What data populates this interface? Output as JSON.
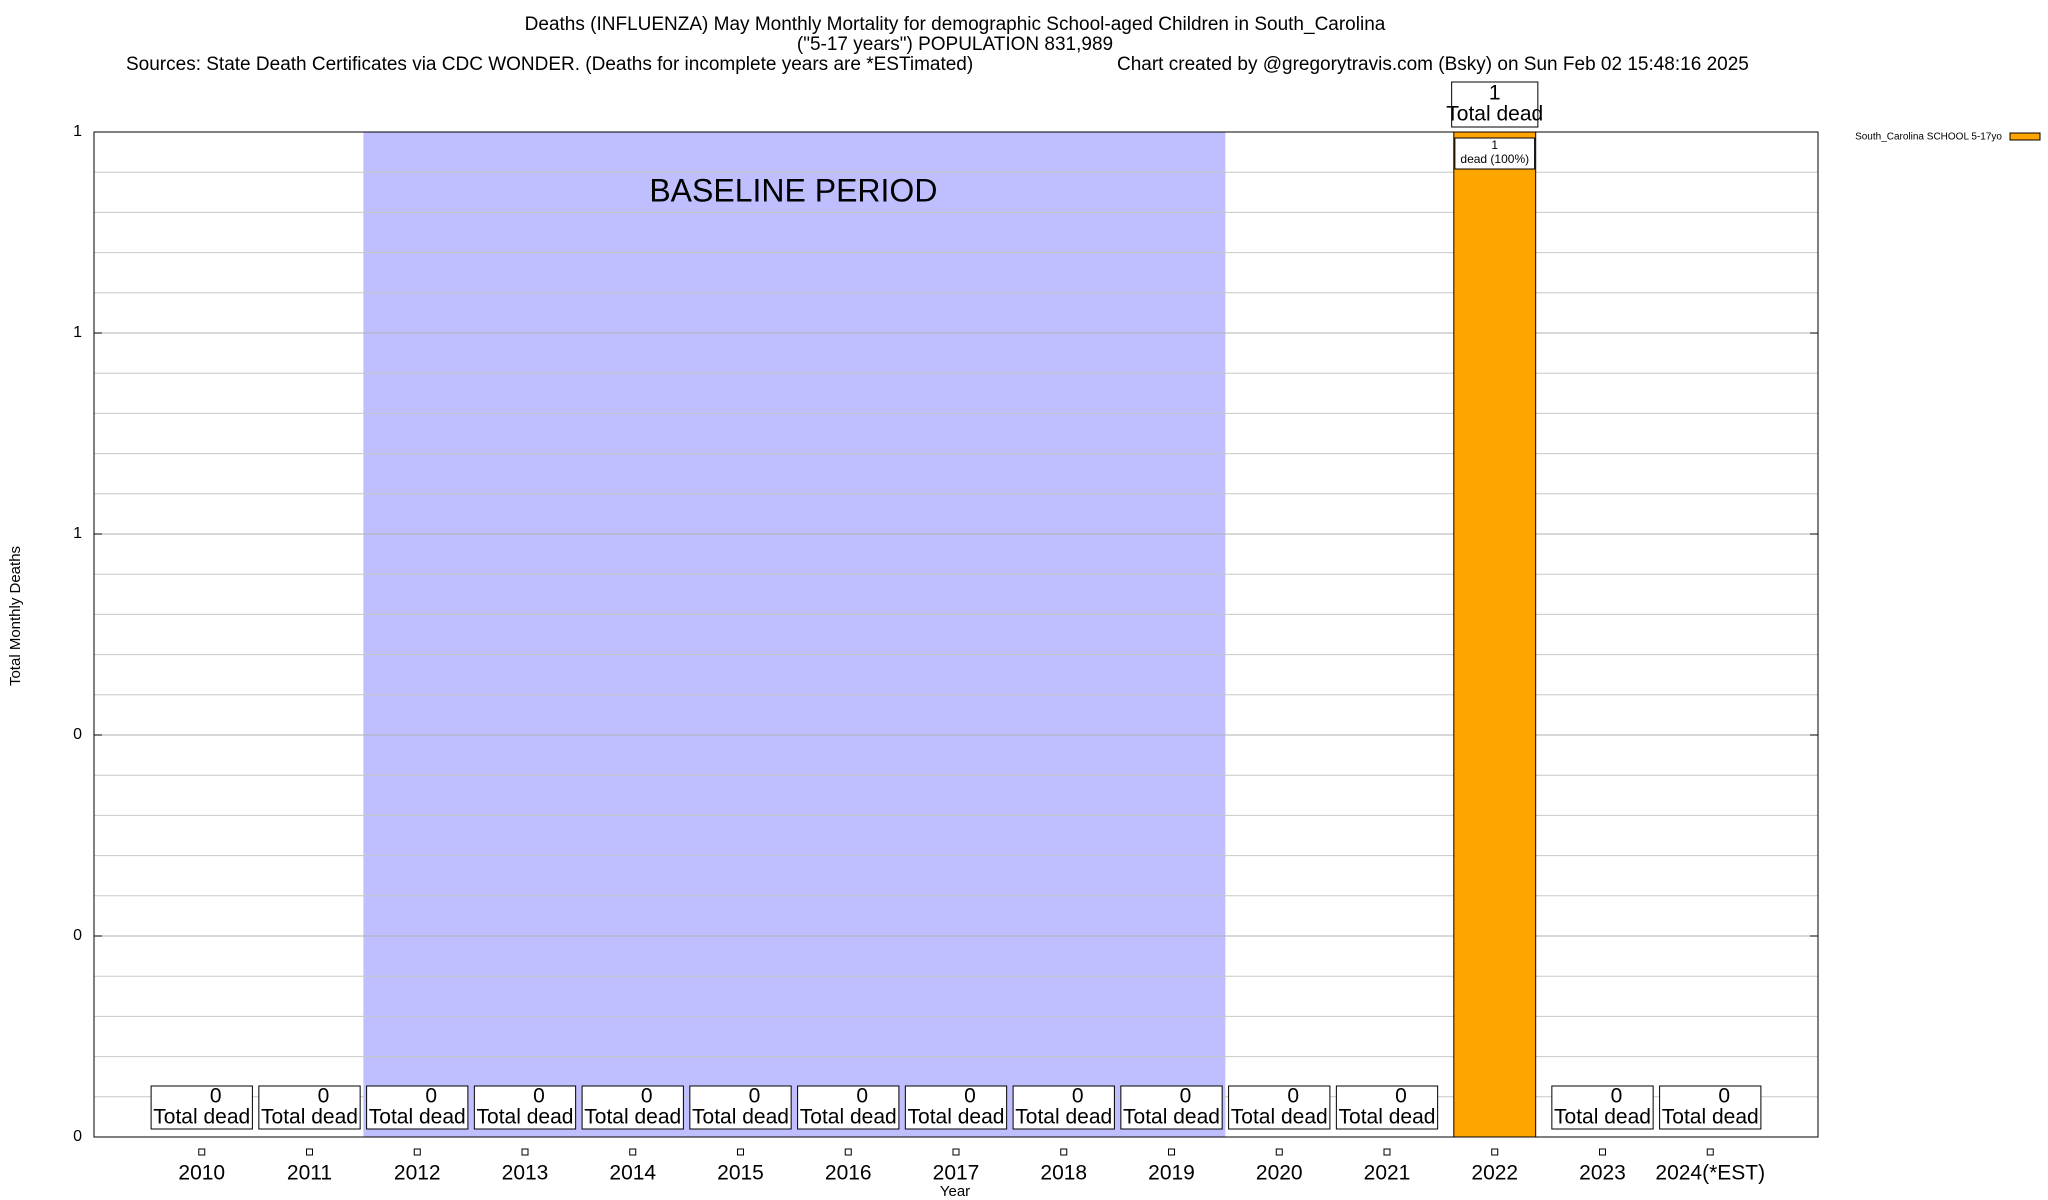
{
  "chart_data": {
    "type": "bar",
    "title": "Deaths (INFLUENZA) May Monthly Mortality for demographic School-aged Children in South_Carolina",
    "subtitle": "(\"5-17 years\") POPULATION 831,989",
    "source": "Sources: State Death Certificates via CDC WONDER. (Deaths for incomplete years are *ESTimated)",
    "credit": "Chart created by @gregorytravis.com (Bsky) on Sun Feb 02 15:48:16 2025",
    "x_label": "Year",
    "y_label": "Total Monthly Deaths",
    "categories": [
      "2010",
      "2011",
      "2012",
      "2013",
      "2014",
      "2015",
      "2016",
      "2017",
      "2018",
      "2019",
      "2020",
      "2021",
      "2022",
      "2023",
      "2024(*EST)"
    ],
    "series": [
      {
        "name": "South_Carolina SCHOOL 5-17yo",
        "color": "#ffa500",
        "values": [
          0,
          0,
          0,
          0,
          0,
          0,
          0,
          0,
          0,
          0,
          0,
          0,
          1,
          0,
          0
        ]
      }
    ],
    "total_label": "Total dead",
    "segment_label": {
      "category": "2022",
      "text": "dead (100%)"
    },
    "baseline": {
      "label": "BASELINE PERIOD",
      "start": "2012",
      "end": "2019",
      "color": "#bfbfff"
    },
    "ylim": [
      0,
      1
    ],
    "yticks": [
      {
        "value": 0,
        "label": "0"
      },
      {
        "value": 0.2,
        "label": "0"
      },
      {
        "value": 0.4,
        "label": "0"
      },
      {
        "value": 0.6,
        "label": "1"
      },
      {
        "value": 0.8,
        "label": "1"
      },
      {
        "value": 1,
        "label": "1"
      }
    ],
    "minor_yticks": [
      0.04,
      0.08,
      0.12,
      0.16,
      0.24,
      0.28,
      0.32,
      0.36,
      0.44,
      0.48,
      0.52,
      0.56,
      0.64,
      0.68,
      0.72,
      0.76,
      0.84,
      0.88,
      0.92,
      0.96
    ],
    "grid": true,
    "legend": "top-right"
  }
}
